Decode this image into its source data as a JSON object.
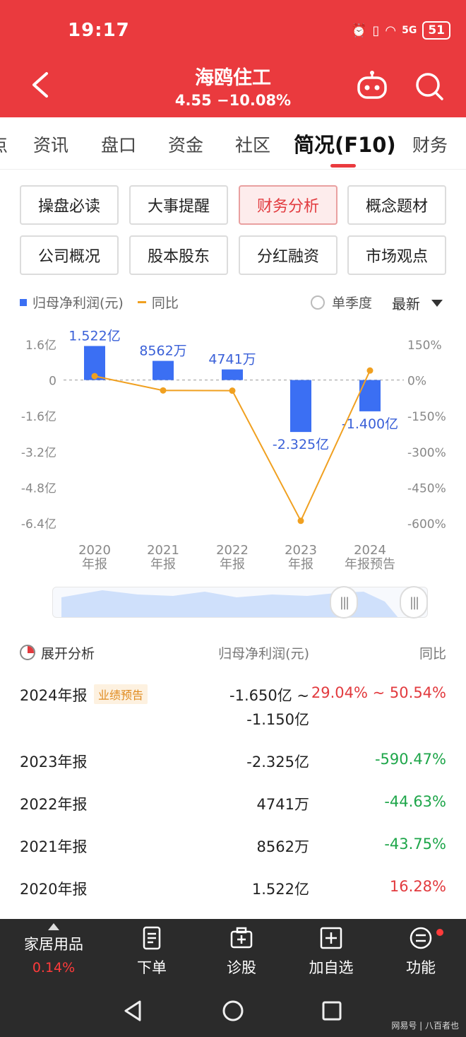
{
  "status": {
    "time": "19:17",
    "network": "5G",
    "battery": "51"
  },
  "header": {
    "title": "海鸥住工",
    "quote": "4.55 −10.08%"
  },
  "tabs": [
    {
      "label": "点"
    },
    {
      "label": "资讯"
    },
    {
      "label": "盘口"
    },
    {
      "label": "资金"
    },
    {
      "label": "社区"
    },
    {
      "label": "简况(F10)"
    },
    {
      "label": "财务"
    }
  ],
  "quick_buttons": [
    "操盘必读",
    "大事提醒",
    "财务分析",
    "概念题材",
    "公司概况",
    "股本股东",
    "分红融资",
    "市场观点"
  ],
  "legend": {
    "bar": "归母净利润(元)",
    "line": "同比",
    "single_quarter": "单季度",
    "latest": "最新"
  },
  "colors": {
    "brand_red": "#ea3a3e",
    "bar_blue": "#3b6ff3",
    "line_orange": "#f0a020",
    "positive": "#e23a3e",
    "negative": "#1ea64a"
  },
  "chart_data": {
    "type": "bar",
    "categories": [
      "2020\n年报",
      "2021\n年报",
      "2022\n年报",
      "2023\n年报",
      "2024\n年报预告"
    ],
    "series": [
      {
        "name": "归母净利润(元)",
        "type": "bar",
        "values": [
          1.522,
          0.8562,
          0.4741,
          -2.325,
          -1.4
        ],
        "labels": [
          "1.522亿",
          "8562万",
          "4741万",
          "-2.325亿",
          "-1.400亿"
        ]
      },
      {
        "name": "同比",
        "type": "line",
        "values": [
          16.28,
          -43.75,
          -44.63,
          -590.47,
          39.79
        ]
      }
    ],
    "y_left": {
      "ticks": [
        "1.6亿",
        "0",
        "-1.6亿",
        "-3.2亿",
        "-4.8亿",
        "-6.4亿"
      ],
      "values": [
        1.6,
        0,
        -1.6,
        -3.2,
        -4.8,
        -6.4
      ],
      "ylim": [
        -6.4,
        1.6
      ]
    },
    "y_right": {
      "ticks": [
        "150%",
        "0%",
        "-150%",
        "-300%",
        "-450%",
        "-600%"
      ],
      "values": [
        150,
        0,
        -150,
        -300,
        -450,
        -600
      ],
      "ylim": [
        -600,
        150
      ]
    }
  },
  "table": {
    "header": {
      "analysis": "展开分析",
      "profit": "归母净利润(元)",
      "yoy": "同比"
    },
    "rows": [
      {
        "period": "2024年报",
        "tag": "业绩预告",
        "profit": "-1.650亿 ~",
        "profit2": "-1.150亿",
        "yoy": "29.04% ~ 50.54%",
        "sign": "pos"
      },
      {
        "period": "2023年报",
        "profit": "-2.325亿",
        "yoy": "-590.47%",
        "sign": "neg"
      },
      {
        "period": "2022年报",
        "profit": "4741万",
        "yoy": "-44.63%",
        "sign": "neg"
      },
      {
        "period": "2021年报",
        "profit": "8562万",
        "yoy": "-43.75%",
        "sign": "neg"
      },
      {
        "period": "2020年报",
        "profit": "1.522亿",
        "yoy": "16.28%",
        "sign": "pos"
      }
    ]
  },
  "toolbar": {
    "sector_name": "家居用品",
    "sector_change": "0.14%",
    "order": "下单",
    "diagnose": "诊股",
    "add_watch": "加自选",
    "functions": "功能"
  },
  "watermark": "网易号 | 八百者也"
}
